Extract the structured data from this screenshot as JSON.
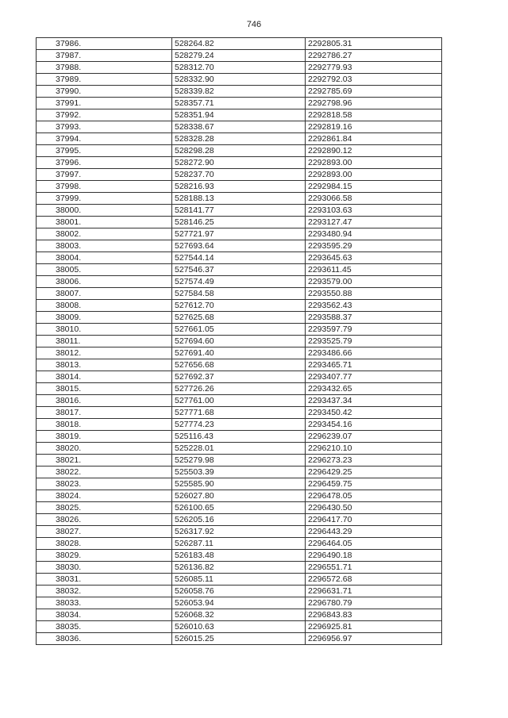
{
  "page_number": "746",
  "table": {
    "rows": [
      [
        "37986.",
        "528264.82",
        "2292805.31"
      ],
      [
        "37987.",
        "528279.24",
        "2292786.27"
      ],
      [
        "37988.",
        "528312.70",
        "2292779.93"
      ],
      [
        "37989.",
        "528332.90",
        "2292792.03"
      ],
      [
        "37990.",
        "528339.82",
        "2292785.69"
      ],
      [
        "37991.",
        "528357.71",
        "2292798.96"
      ],
      [
        "37992.",
        "528351.94",
        "2292818.58"
      ],
      [
        "37993.",
        "528338.67",
        "2292819.16"
      ],
      [
        "37994.",
        "528328.28",
        "2292861.84"
      ],
      [
        "37995.",
        "528298.28",
        "2292890.12"
      ],
      [
        "37996.",
        "528272.90",
        "2292893.00"
      ],
      [
        "37997.",
        "528237.70",
        "2292893.00"
      ],
      [
        "37998.",
        "528216.93",
        "2292984.15"
      ],
      [
        "37999.",
        "528188.13",
        "2293066.58"
      ],
      [
        "38000.",
        "528141.77",
        "2293103.63"
      ],
      [
        "38001.",
        "528146.25",
        "2293127.47"
      ],
      [
        "38002.",
        "527721.97",
        "2293480.94"
      ],
      [
        "38003.",
        "527693.64",
        "2293595.29"
      ],
      [
        "38004.",
        "527544.14",
        "2293645.63"
      ],
      [
        "38005.",
        "527546.37",
        "2293611.45"
      ],
      [
        "38006.",
        "527574.49",
        "2293579.00"
      ],
      [
        "38007.",
        "527584.58",
        "2293550.88"
      ],
      [
        "38008.",
        "527612.70",
        "2293562.43"
      ],
      [
        "38009.",
        "527625.68",
        "2293588.37"
      ],
      [
        "38010.",
        "527661.05",
        "2293597.79"
      ],
      [
        "38011.",
        "527694.60",
        "2293525.79"
      ],
      [
        "38012.",
        "527691.40",
        "2293486.66"
      ],
      [
        "38013.",
        "527656.68",
        "2293465.71"
      ],
      [
        "38014.",
        "527692.37",
        "2293407.77"
      ],
      [
        "38015.",
        "527726.26",
        "2293432.65"
      ],
      [
        "38016.",
        "527761.00",
        "2293437.34"
      ],
      [
        "38017.",
        "527771.68",
        "2293450.42"
      ],
      [
        "38018.",
        "527774.23",
        "2293454.16"
      ],
      [
        "38019.",
        "525116.43",
        "2296239.07"
      ],
      [
        "38020.",
        "525228.01",
        "2296210.10"
      ],
      [
        "38021.",
        "525279.98",
        "2296273.23"
      ],
      [
        "38022.",
        "525503.39",
        "2296429.25"
      ],
      [
        "38023.",
        "525585.90",
        "2296459.75"
      ],
      [
        "38024.",
        "526027.80",
        "2296478.05"
      ],
      [
        "38025.",
        "526100.65",
        "2296430.50"
      ],
      [
        "38026.",
        "526205.16",
        "2296417.70"
      ],
      [
        "38027.",
        "526317.92",
        "2296443.29"
      ],
      [
        "38028.",
        "526287.11",
        "2296464.05"
      ],
      [
        "38029.",
        "526183.48",
        "2296490.18"
      ],
      [
        "38030.",
        "526136.82",
        "2296551.71"
      ],
      [
        "38031.",
        "526085.11",
        "2296572.68"
      ],
      [
        "38032.",
        "526058.76",
        "2296631.71"
      ],
      [
        "38033.",
        "526053.94",
        "2296780.79"
      ],
      [
        "38034.",
        "526068.32",
        "2296843.83"
      ],
      [
        "38035.",
        "526010.63",
        "2296925.81"
      ],
      [
        "38036.",
        "526015.25",
        "2296956.97"
      ]
    ]
  }
}
